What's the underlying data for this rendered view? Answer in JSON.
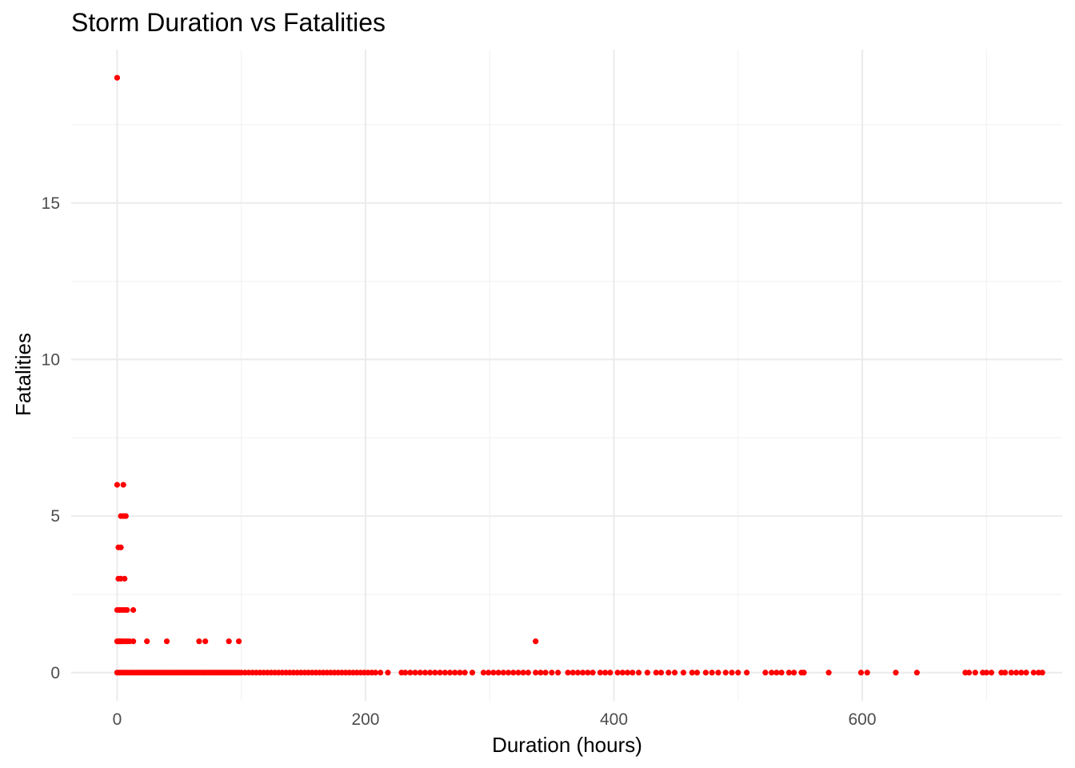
{
  "chart_data": {
    "type": "scatter",
    "title": "Storm Duration vs Fatalities",
    "xlabel": "Duration (hours)",
    "ylabel": "Fatalities",
    "xlim": [
      -37,
      761
    ],
    "ylim": [
      -0.9,
      19.9
    ],
    "xticks": [
      0,
      200,
      400,
      600
    ],
    "yticks": [
      0,
      5,
      10,
      15
    ],
    "grid": true,
    "legend": "none",
    "point_color": "#ff0000",
    "series": [
      {
        "points": [
          [
            0,
            19
          ],
          [
            0,
            6
          ],
          [
            5,
            6
          ],
          [
            3,
            5
          ],
          [
            5,
            5
          ],
          [
            7,
            5
          ],
          [
            1,
            4
          ],
          [
            3,
            4
          ],
          [
            1,
            3
          ],
          [
            3,
            3
          ],
          [
            6,
            3
          ],
          [
            0,
            2
          ],
          [
            2,
            2
          ],
          [
            4,
            2
          ],
          [
            6,
            2
          ],
          [
            8,
            2
          ],
          [
            13,
            2
          ],
          [
            0,
            1
          ],
          [
            1,
            1
          ],
          [
            2,
            1
          ],
          [
            3,
            1
          ],
          [
            4,
            1
          ],
          [
            6,
            1
          ],
          [
            8,
            1
          ],
          [
            10,
            1
          ],
          [
            13,
            1
          ],
          [
            24,
            1
          ],
          [
            40,
            1
          ],
          [
            66,
            1
          ],
          [
            71,
            1
          ],
          [
            90,
            1
          ],
          [
            98,
            1
          ],
          [
            337,
            1
          ],
          [
            0,
            0
          ],
          [
            2,
            0
          ],
          [
            4,
            0
          ],
          [
            6,
            0
          ],
          [
            8,
            0
          ],
          [
            10,
            0
          ],
          [
            12,
            0
          ],
          [
            14,
            0
          ],
          [
            16,
            0
          ],
          [
            18,
            0
          ],
          [
            20,
            0
          ],
          [
            22,
            0
          ],
          [
            24,
            0
          ],
          [
            26,
            0
          ],
          [
            28,
            0
          ],
          [
            30,
            0
          ],
          [
            32,
            0
          ],
          [
            34,
            0
          ],
          [
            36,
            0
          ],
          [
            38,
            0
          ],
          [
            40,
            0
          ],
          [
            42,
            0
          ],
          [
            44,
            0
          ],
          [
            46,
            0
          ],
          [
            48,
            0
          ],
          [
            50,
            0
          ],
          [
            52,
            0
          ],
          [
            54,
            0
          ],
          [
            56,
            0
          ],
          [
            58,
            0
          ],
          [
            60,
            0
          ],
          [
            62,
            0
          ],
          [
            64,
            0
          ],
          [
            66,
            0
          ],
          [
            68,
            0
          ],
          [
            70,
            0
          ],
          [
            72,
            0
          ],
          [
            74,
            0
          ],
          [
            76,
            0
          ],
          [
            78,
            0
          ],
          [
            80,
            0
          ],
          [
            82,
            0
          ],
          [
            84,
            0
          ],
          [
            86,
            0
          ],
          [
            88,
            0
          ],
          [
            90,
            0
          ],
          [
            92,
            0
          ],
          [
            94,
            0
          ],
          [
            96,
            0
          ],
          [
            98,
            0
          ],
          [
            100,
            0
          ],
          [
            103,
            0
          ],
          [
            106,
            0
          ],
          [
            109,
            0
          ],
          [
            112,
            0
          ],
          [
            115,
            0
          ],
          [
            118,
            0
          ],
          [
            121,
            0
          ],
          [
            124,
            0
          ],
          [
            127,
            0
          ],
          [
            130,
            0
          ],
          [
            133,
            0
          ],
          [
            136,
            0
          ],
          [
            139,
            0
          ],
          [
            142,
            0
          ],
          [
            145,
            0
          ],
          [
            148,
            0
          ],
          [
            151,
            0
          ],
          [
            154,
            0
          ],
          [
            157,
            0
          ],
          [
            160,
            0
          ],
          [
            163,
            0
          ],
          [
            166,
            0
          ],
          [
            169,
            0
          ],
          [
            172,
            0
          ],
          [
            175,
            0
          ],
          [
            178,
            0
          ],
          [
            181,
            0
          ],
          [
            184,
            0
          ],
          [
            187,
            0
          ],
          [
            190,
            0
          ],
          [
            193,
            0
          ],
          [
            196,
            0
          ],
          [
            199,
            0
          ],
          [
            202,
            0
          ],
          [
            205,
            0
          ],
          [
            208,
            0
          ],
          [
            212,
            0
          ],
          [
            218,
            0
          ],
          [
            229,
            0
          ],
          [
            232,
            0
          ],
          [
            236,
            0
          ],
          [
            240,
            0
          ],
          [
            244,
            0
          ],
          [
            248,
            0
          ],
          [
            252,
            0
          ],
          [
            256,
            0
          ],
          [
            260,
            0
          ],
          [
            264,
            0
          ],
          [
            268,
            0
          ],
          [
            272,
            0
          ],
          [
            276,
            0
          ],
          [
            280,
            0
          ],
          [
            286,
            0
          ],
          [
            295,
            0
          ],
          [
            299,
            0
          ],
          [
            303,
            0
          ],
          [
            307,
            0
          ],
          [
            311,
            0
          ],
          [
            315,
            0
          ],
          [
            319,
            0
          ],
          [
            323,
            0
          ],
          [
            327,
            0
          ],
          [
            331,
            0
          ],
          [
            337,
            0
          ],
          [
            341,
            0
          ],
          [
            345,
            0
          ],
          [
            350,
            0
          ],
          [
            355,
            0
          ],
          [
            363,
            0
          ],
          [
            367,
            0
          ],
          [
            371,
            0
          ],
          [
            375,
            0
          ],
          [
            379,
            0
          ],
          [
            383,
            0
          ],
          [
            389,
            0
          ],
          [
            393,
            0
          ],
          [
            397,
            0
          ],
          [
            403,
            0
          ],
          [
            407,
            0
          ],
          [
            411,
            0
          ],
          [
            415,
            0
          ],
          [
            420,
            0
          ],
          [
            427,
            0
          ],
          [
            434,
            0
          ],
          [
            438,
            0
          ],
          [
            444,
            0
          ],
          [
            449,
            0
          ],
          [
            456,
            0
          ],
          [
            463,
            0
          ],
          [
            467,
            0
          ],
          [
            474,
            0
          ],
          [
            479,
            0
          ],
          [
            484,
            0
          ],
          [
            490,
            0
          ],
          [
            495,
            0
          ],
          [
            500,
            0
          ],
          [
            507,
            0
          ],
          [
            522,
            0
          ],
          [
            527,
            0
          ],
          [
            531,
            0
          ],
          [
            535,
            0
          ],
          [
            541,
            0
          ],
          [
            545,
            0
          ],
          [
            551,
            0
          ],
          [
            553,
            0
          ],
          [
            573,
            0
          ],
          [
            599,
            0
          ],
          [
            604,
            0
          ],
          [
            627,
            0
          ],
          [
            644,
            0
          ],
          [
            683,
            0
          ],
          [
            686,
            0
          ],
          [
            691,
            0
          ],
          [
            697,
            0
          ],
          [
            700,
            0
          ],
          [
            704,
            0
          ],
          [
            712,
            0
          ],
          [
            715,
            0
          ],
          [
            720,
            0
          ],
          [
            724,
            0
          ],
          [
            728,
            0
          ],
          [
            732,
            0
          ],
          [
            738,
            0
          ],
          [
            742,
            0
          ],
          [
            745,
            0
          ]
        ]
      }
    ]
  }
}
